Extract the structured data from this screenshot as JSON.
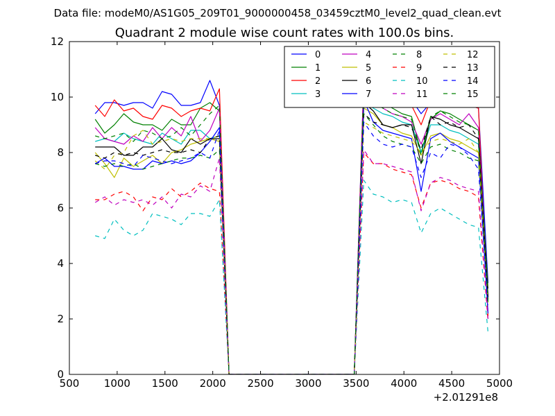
{
  "chart_data": {
    "type": "line",
    "suptitle": "Data file: modeM0/AS1G05_209T01_9000000458_03459cztM0_level2_quad_clean.evt",
    "title": "Quadrant 2 module wise count rates with 100.0s bins.",
    "xlabel": "",
    "ylabel": "",
    "x_offset_label": "+2.01291e8",
    "xlim": [
      500,
      5000
    ],
    "ylim": [
      0,
      12
    ],
    "xticks": [
      500,
      1000,
      1500,
      2000,
      2500,
      3000,
      3500,
      4000,
      4500,
      5000
    ],
    "yticks": [
      0,
      2,
      4,
      6,
      8,
      10,
      12
    ],
    "grid": false,
    "legend": {
      "placement": "top-right",
      "columns": 4
    },
    "x": [
      770,
      870,
      970,
      1070,
      1170,
      1270,
      1370,
      1470,
      1570,
      1670,
      1770,
      1870,
      1970,
      2070,
      2170,
      3380,
      3480,
      3580,
      3680,
      3780,
      3880,
      3980,
      4080,
      4180,
      4280,
      4380,
      4480,
      4580,
      4680,
      4780,
      4880
    ],
    "series": [
      {
        "name": "0",
        "color": "#0000ff",
        "dash": "solid",
        "values": [
          9.4,
          9.8,
          9.8,
          9.7,
          9.8,
          9.8,
          9.6,
          10.2,
          10.1,
          9.7,
          9.7,
          9.8,
          10.6,
          9.7,
          0,
          0,
          0,
          10.7,
          10.3,
          10.0,
          9.9,
          9.8,
          9.9,
          9.4,
          9.8,
          9.9,
          10.0,
          9.8,
          9.7,
          9.6,
          3.3
        ]
      },
      {
        "name": "1",
        "color": "#008000",
        "dash": "solid",
        "values": [
          9.2,
          8.7,
          9.0,
          9.4,
          9.1,
          9.0,
          9.0,
          8.8,
          9.2,
          9.0,
          9.0,
          9.6,
          9.8,
          9.5,
          0,
          0,
          0,
          10.3,
          10.0,
          9.8,
          9.6,
          9.4,
          9.3,
          8.0,
          9.2,
          9.5,
          9.4,
          9.2,
          9.0,
          8.8,
          3.1
        ]
      },
      {
        "name": "2",
        "color": "#ff0000",
        "dash": "solid",
        "values": [
          9.7,
          9.3,
          9.9,
          9.5,
          9.6,
          9.3,
          9.2,
          9.7,
          9.6,
          9.3,
          9.5,
          9.6,
          9.5,
          10.3,
          0,
          0,
          0,
          10.6,
          10.4,
          10.6,
          10.1,
          9.9,
          9.7,
          9.0,
          9.9,
          10.1,
          10.0,
          9.8,
          9.7,
          9.6,
          2.1
        ]
      },
      {
        "name": "3",
        "color": "#00bfbf",
        "dash": "solid",
        "values": [
          8.4,
          8.5,
          8.4,
          8.7,
          8.5,
          8.4,
          8.3,
          8.7,
          8.5,
          8.3,
          8.8,
          8.8,
          8.5,
          8.6,
          0,
          0,
          0,
          9.9,
          9.6,
          9.4,
          9.3,
          9.1,
          9.0,
          8.0,
          9.0,
          9.0,
          8.8,
          8.7,
          8.5,
          8.3,
          2.8
        ]
      },
      {
        "name": "4",
        "color": "#bf00bf",
        "dash": "solid",
        "values": [
          8.9,
          8.5,
          8.4,
          8.3,
          8.6,
          8.4,
          8.9,
          8.5,
          8.9,
          8.6,
          9.3,
          8.4,
          8.8,
          9.6,
          0,
          0,
          0,
          10.2,
          9.9,
          9.6,
          9.4,
          9.3,
          9.1,
          8.3,
          9.2,
          9.4,
          9.2,
          9.0,
          9.4,
          8.9,
          2.8
        ]
      },
      {
        "name": "5",
        "color": "#bfbf00",
        "dash": "solid",
        "values": [
          8.0,
          7.6,
          7.1,
          7.8,
          7.5,
          7.7,
          7.9,
          7.6,
          8.0,
          8.1,
          8.3,
          8.4,
          8.5,
          8.4,
          0,
          0,
          0,
          9.6,
          9.4,
          9.0,
          8.9,
          8.7,
          8.6,
          7.9,
          8.6,
          8.7,
          8.5,
          8.4,
          8.2,
          8.0,
          2.6
        ]
      },
      {
        "name": "6",
        "color": "#000000",
        "dash": "solid",
        "values": [
          8.2,
          8.2,
          8.2,
          7.9,
          7.9,
          8.2,
          8.2,
          8.5,
          8.1,
          8.0,
          8.5,
          8.3,
          8.5,
          8.5,
          0,
          0,
          0,
          9.8,
          9.5,
          9.0,
          8.9,
          9.0,
          9.0,
          7.6,
          9.3,
          9.2,
          9.0,
          8.9,
          8.7,
          8.5,
          2.8
        ]
      },
      {
        "name": "7",
        "color": "#0000ff",
        "dash": "solid",
        "values": [
          7.6,
          7.8,
          7.5,
          7.5,
          7.4,
          7.4,
          7.7,
          7.6,
          7.7,
          7.6,
          7.7,
          8.0,
          8.4,
          8.9,
          0,
          0,
          0,
          9.9,
          9.1,
          8.8,
          8.7,
          8.6,
          8.5,
          6.6,
          8.5,
          8.7,
          8.4,
          8.2,
          8.0,
          7.8,
          2.2
        ]
      },
      {
        "name": "8",
        "color": "#008000",
        "dash": "dashed",
        "values": [
          7.6,
          7.5,
          7.6,
          7.5,
          7.6,
          7.4,
          7.5,
          7.6,
          7.7,
          7.8,
          7.8,
          7.9,
          7.8,
          8.1,
          0,
          0,
          0,
          9.4,
          9.0,
          8.6,
          8.4,
          8.3,
          8.2,
          7.6,
          8.2,
          8.3,
          8.1,
          8.0,
          7.8,
          7.7,
          2.6
        ]
      },
      {
        "name": "9",
        "color": "#ff0000",
        "dash": "dashed",
        "values": [
          6.3,
          6.3,
          6.5,
          6.6,
          6.4,
          5.9,
          6.4,
          6.3,
          6.7,
          6.4,
          6.6,
          6.9,
          6.7,
          6.6,
          0,
          0,
          0,
          8.0,
          7.6,
          7.6,
          7.4,
          7.3,
          7.2,
          6.0,
          6.9,
          7.0,
          6.9,
          6.7,
          6.6,
          6.4,
          1.9
        ]
      },
      {
        "name": "10",
        "color": "#00bfbf",
        "dash": "dashed",
        "values": [
          5.0,
          4.9,
          5.6,
          5.2,
          5.0,
          5.2,
          5.8,
          5.7,
          5.6,
          5.4,
          5.8,
          5.8,
          5.7,
          6.3,
          0,
          0,
          0,
          7.0,
          6.5,
          6.4,
          6.2,
          6.3,
          6.2,
          5.1,
          5.8,
          6.0,
          5.8,
          5.6,
          5.4,
          5.3,
          1.5
        ]
      },
      {
        "name": "11",
        "color": "#bf00bf",
        "dash": "dashed",
        "values": [
          6.2,
          6.4,
          6.1,
          6.3,
          6.2,
          6.3,
          6.1,
          6.4,
          6.0,
          6.5,
          6.4,
          6.8,
          6.6,
          7.8,
          0,
          0,
          0,
          8.1,
          7.6,
          7.6,
          7.5,
          7.4,
          7.3,
          5.9,
          6.9,
          7.1,
          7.0,
          6.8,
          6.7,
          6.6,
          2.0
        ]
      },
      {
        "name": "12",
        "color": "#bfbf00",
        "dash": "dashed",
        "values": [
          7.7,
          7.4,
          7.9,
          8.0,
          8.6,
          8.8,
          8.3,
          8.4,
          8.5,
          8.4,
          8.5,
          8.5,
          8.5,
          8.6,
          0,
          0,
          0,
          9.1,
          8.9,
          8.7,
          8.6,
          8.5,
          8.4,
          8.0,
          8.4,
          8.5,
          8.4,
          8.3,
          8.5,
          8.0,
          2.5
        ]
      },
      {
        "name": "13",
        "color": "#000000",
        "dash": "dashed",
        "values": [
          7.9,
          7.8,
          8.0,
          7.9,
          8.0,
          7.9,
          8.0,
          8.1,
          8.0,
          8.0,
          8.1,
          8.0,
          8.5,
          8.6,
          0,
          0,
          0,
          9.4,
          9.1,
          9.0,
          8.9,
          9.0,
          8.9,
          8.1,
          9.3,
          9.0,
          9.1,
          8.9,
          9.0,
          8.5,
          2.7
        ]
      },
      {
        "name": "14",
        "color": "#0000ff",
        "dash": "dashed",
        "values": [
          7.6,
          7.7,
          7.7,
          7.6,
          7.5,
          7.9,
          7.8,
          7.7,
          7.6,
          7.7,
          7.8,
          8.0,
          7.8,
          8.8,
          0,
          0,
          0,
          9.1,
          8.6,
          8.3,
          8.2,
          8.3,
          8.2,
          7.1,
          8.0,
          7.8,
          8.3,
          8.2,
          7.9,
          7.4,
          2.5
        ]
      },
      {
        "name": "15",
        "color": "#008000",
        "dash": "dashed",
        "values": [
          8.6,
          8.5,
          8.6,
          8.7,
          8.4,
          8.8,
          8.7,
          8.5,
          8.6,
          8.9,
          8.6,
          9.0,
          9.4,
          9.7,
          0,
          0,
          0,
          10.4,
          9.8,
          9.6,
          9.4,
          9.3,
          9.2,
          7.9,
          9.3,
          9.5,
          9.3,
          9.1,
          9.0,
          8.8,
          2.6
        ]
      }
    ]
  }
}
